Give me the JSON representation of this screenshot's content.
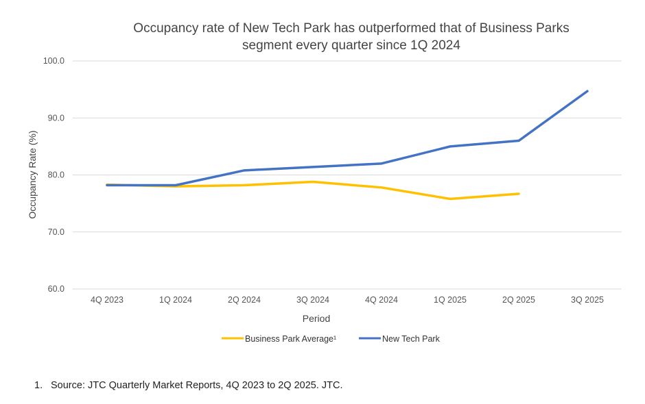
{
  "chart_data": {
    "type": "line",
    "title_lines": [
      "Occupancy rate of New Tech Park has outperformed that of Business Parks",
      "segment every quarter since 1Q 2024"
    ],
    "xlabel": "Period",
    "ylabel": "Occupancy Rate (%)",
    "ylim": [
      60,
      100
    ],
    "yticks": [
      "60.0",
      "70.0",
      "80.0",
      "90.0",
      "100.0"
    ],
    "ytick_values": [
      60,
      70,
      80,
      90,
      100
    ],
    "categories": [
      "4Q 2023",
      "1Q 2024",
      "2Q 2024",
      "3Q 2024",
      "4Q 2024",
      "1Q 2025",
      "2Q 2025",
      "3Q 2025"
    ],
    "grid": true,
    "legend_position": "bottom",
    "series": [
      {
        "name": "Business Park Average¹",
        "color": "#FFC000",
        "values": [
          78.3,
          78.0,
          78.2,
          78.8,
          77.8,
          75.8,
          76.7,
          null
        ]
      },
      {
        "name": "New Tech Park",
        "color": "#4472C4",
        "values": [
          78.2,
          78.2,
          80.8,
          81.4,
          82.0,
          85.0,
          86.0,
          94.7
        ]
      }
    ]
  },
  "footnote": {
    "number": "1.",
    "text": "Source: JTC Quarterly Market Reports, 4Q 2023 to 2Q 2025. JTC."
  }
}
